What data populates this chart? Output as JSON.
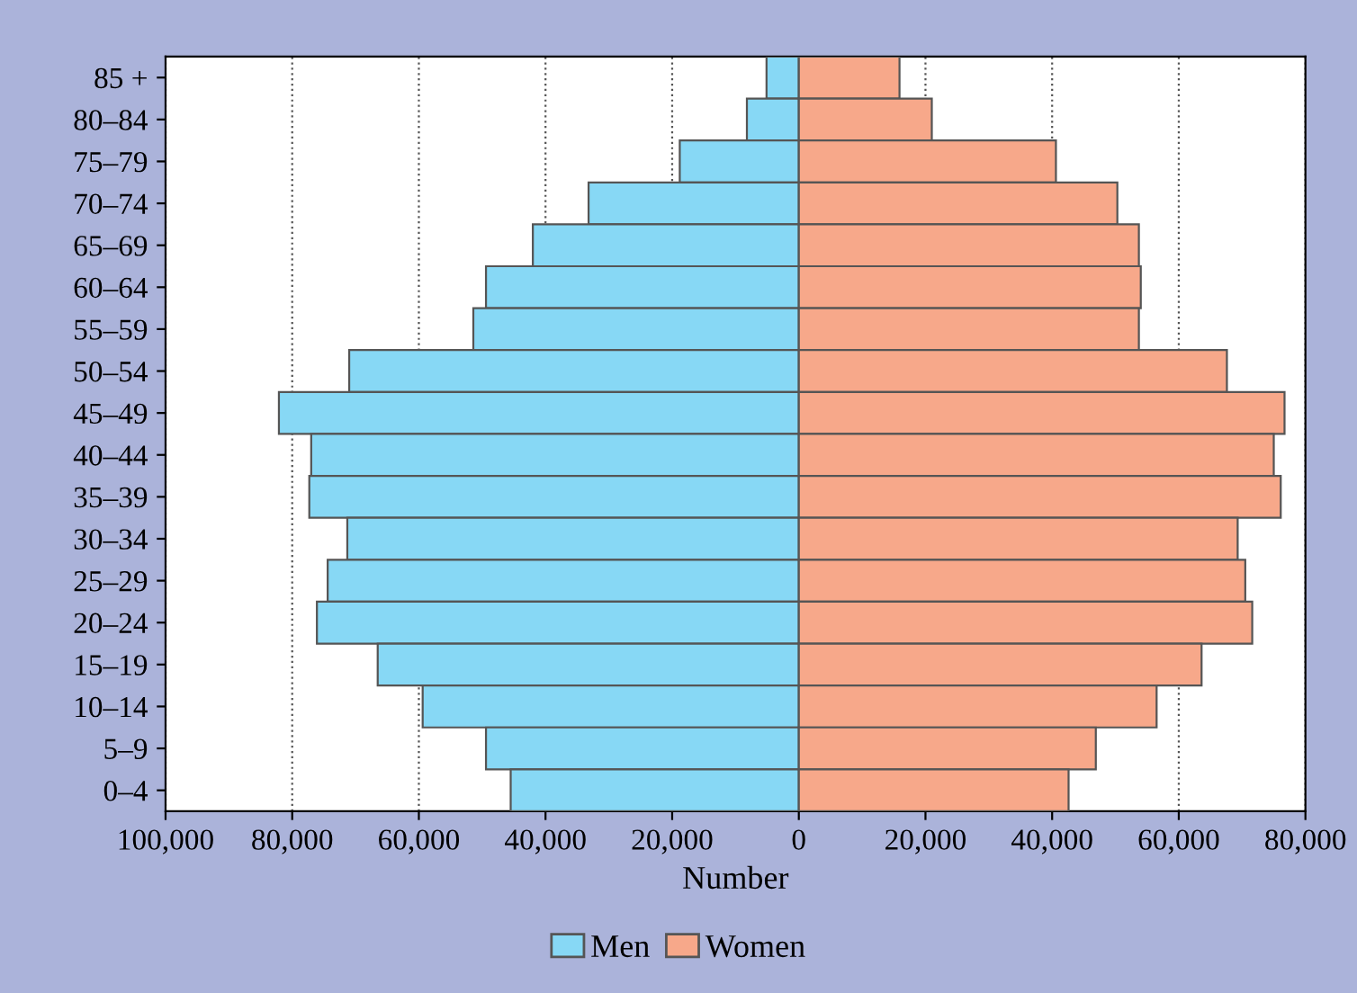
{
  "chart_data": {
    "type": "bar",
    "orientation": "horizontal",
    "stacked": true,
    "xlabel": "Number",
    "categories": [
      "85 +",
      "80–84",
      "75–79",
      "70–74",
      "65–69",
      "60–64",
      "55–59",
      "50–54",
      "45–49",
      "40–44",
      "35–39",
      "30–34",
      "25–29",
      "20–24",
      "15–19",
      "10–14",
      "5–9",
      "0–4"
    ],
    "series": [
      {
        "name": "Men",
        "color": "#87d8f5",
        "values": [
          -5100,
          -8200,
          -18800,
          -33200,
          -42000,
          -49400,
          -51400,
          -71000,
          -82100,
          -77000,
          -77300,
          -71300,
          -74400,
          -76100,
          -66500,
          -59400,
          -49400,
          -45500
        ]
      },
      {
        "name": "Women",
        "color": "#f7a88a",
        "values": [
          15900,
          21000,
          40600,
          50300,
          53700,
          54000,
          53700,
          67600,
          76700,
          75000,
          76100,
          69300,
          70500,
          71600,
          63600,
          56500,
          46900,
          42600
        ]
      }
    ],
    "xlim": [
      -100000,
      80000
    ],
    "xticks": [
      {
        "value": -100000,
        "label": "100,000"
      },
      {
        "value": -80000,
        "label": "80,000"
      },
      {
        "value": -60000,
        "label": "60,000"
      },
      {
        "value": -40000,
        "label": "40,000"
      },
      {
        "value": -20000,
        "label": "20,000"
      },
      0,
      {
        "value": 20000,
        "label": "20,000"
      },
      {
        "value": 40000,
        "label": "40,000"
      },
      {
        "value": 60000,
        "label": "60,000"
      },
      {
        "value": 80000,
        "label": "80,000"
      }
    ],
    "grid": "x",
    "legend": "bottom"
  }
}
